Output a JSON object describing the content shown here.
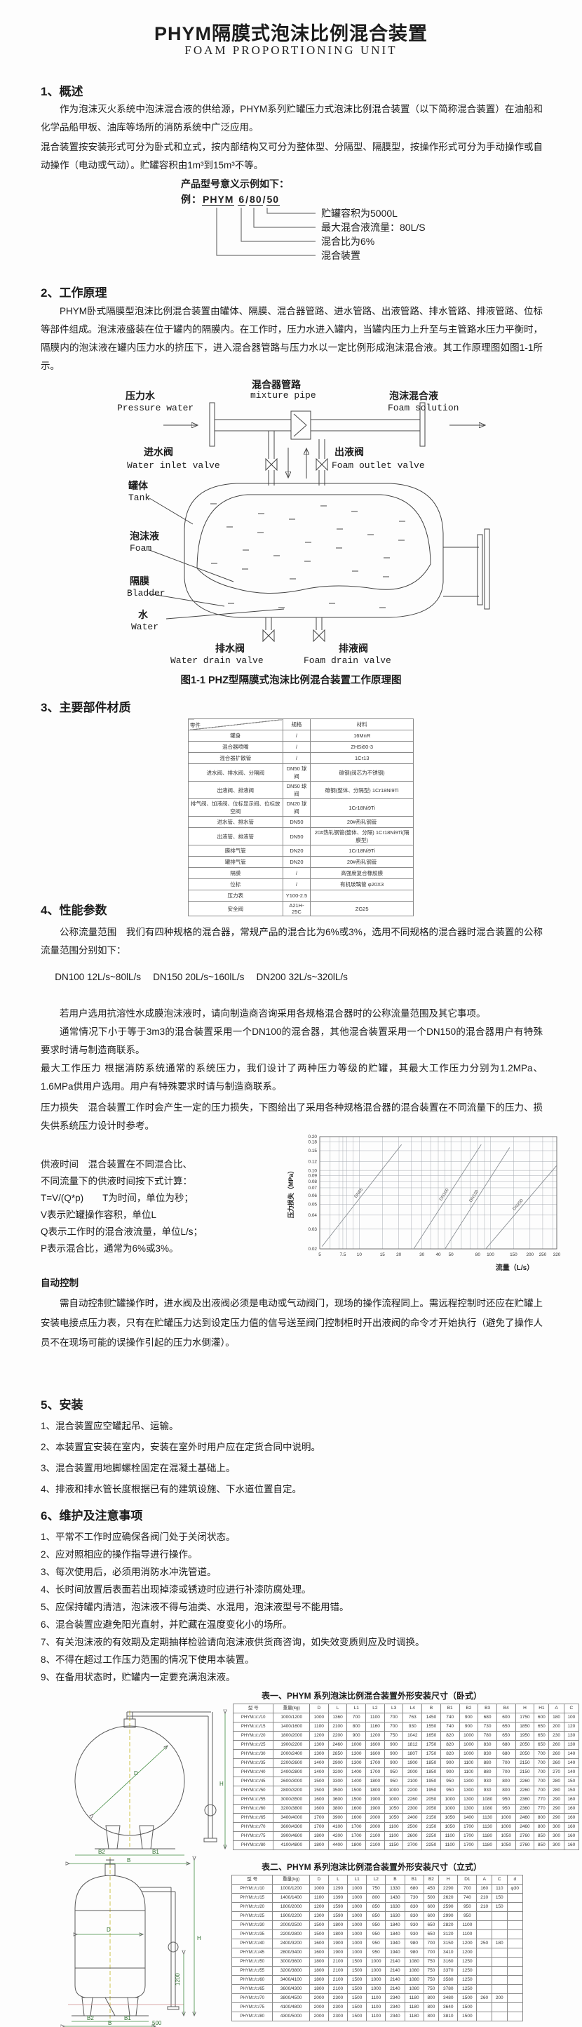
{
  "page": {
    "title": "PHYM隔膜式泡沫比例混合装置",
    "subtitle": "FOAM PROPORTIONING UNIT"
  },
  "s1": {
    "heading": "1、概述",
    "p1": "作为泡沫灭火系统中泡沫混合液的供给源，PHYM系列贮罐压力式泡沫比例混合装置（以下简称混合装置）在油船和化学品船甲板、油库等场所的消防系统中广泛应用。",
    "p2": "混合装置按安装形式可分为卧式和立式，按内部结构又可分为整体型、分隔型、隔膜型，按操作形式可分为手动操作或自动操作（电动或气动）。贮罐容积由1m³到15m³不等。"
  },
  "model": {
    "intro": "产品型号意义示例如下：",
    "example_label": "例：",
    "code_parts": [
      "PHYM",
      "6",
      "80",
      "50"
    ],
    "callouts": [
      "贮罐容积为5000L",
      "最大混合液流量：80L/S",
      "混合比为6%",
      "混合装置"
    ]
  },
  "s2": {
    "heading": "2、工作原理",
    "p1": "PHYM卧式隔膜型泡沫比例混合装置由罐体、隔膜、混合器管路、进水管路、出液管路、排水管路、排液管路、位标等部件组成。泡沫液盛装在位于罐内的隔膜内。在工作时，压力水进入罐内，当罐内压力上升至与主管路水压力平衡时，隔膜内的泡沫液在罐内压力水的挤压下，进入混合器管路与压力水以一定比例形成泡沫混合液。其工作原理图如图1-1所示。"
  },
  "figure": {
    "caption": "图1-1 PHZ型隔膜式泡沫比例混合装置工作原理图",
    "labels": {
      "mixture_pipe": {
        "cn": "混合器管路",
        "en": "mixture pipe"
      },
      "pressure_water": {
        "cn": "压力水",
        "en": "Pressure water"
      },
      "foam_solution": {
        "cn": "泡沫混合液",
        "en": "Foam solution"
      },
      "water_inlet_valve": {
        "cn": "进水阀",
        "en": "Water inlet valve"
      },
      "foam_outlet_valve": {
        "cn": "出液阀",
        "en": "Foam outlet valve"
      },
      "tank": {
        "cn": "罐体",
        "en": "Tank"
      },
      "foam": {
        "cn": "泡沫液",
        "en": "Foam"
      },
      "bladder": {
        "cn": "隔膜",
        "en": "Bladder"
      },
      "water": {
        "cn": "水",
        "en": "Water"
      },
      "water_drain_valve": {
        "cn": "排水阀",
        "en": "Water drain valve"
      },
      "foam_drain_valve": {
        "cn": "排液阀",
        "en": "Foam drain valve"
      }
    }
  },
  "s3": {
    "heading": "3、主要部件材质",
    "materials_table": {
      "headers": [
        "零件",
        "规格",
        "材料"
      ],
      "rows": [
        [
          "罐身",
          "/",
          "16MnR"
        ],
        [
          "混合器喷嘴",
          "/",
          "ZHSi60-3"
        ],
        [
          "混合器扩散管",
          "/",
          "1Cr13"
        ],
        [
          "进水阀、排水阀、分隔阀",
          "DN50 球阀",
          "碳钢(阀芯为不锈钢)"
        ],
        [
          "出液阀、排液阀",
          "DN50 球阀",
          "碳钢(整体、分隔型) 1Cr18Ni9Ti"
        ],
        [
          "排气阀、加液阀、位标显示阀、位标放空阀",
          "DN20 球阀",
          "1Cr18Ni9Ti"
        ],
        [
          "进水管、排水管",
          "DN50",
          "20#热轧钢管"
        ],
        [
          "出液管、排液管",
          "DN50",
          "20#热轧钢管(整体、分隔) 1Cr18Ni9Ti(隔膜型)"
        ],
        [
          "膜排气管",
          "DN20",
          "1Cr18Ni9Ti"
        ],
        [
          "罐排气管",
          "DN20",
          "20#热轧钢管"
        ],
        [
          "隔膜",
          "/",
          "高强度复合橡胶膜"
        ],
        [
          "位标",
          "/",
          "有机玻璃管 φ20X3"
        ],
        [
          "压力表",
          "Y100-2.5",
          ""
        ],
        [
          "安全阀",
          "A21H-25C",
          "ZG25"
        ]
      ]
    }
  },
  "s4": {
    "heading": "4、性能参数",
    "p1": "公称流量范围　我们有四种规格的混合器，常规产品的混合比为6%或3%，选用不同规格的混合器时混合装置的公称流量范围分别如下：",
    "flow_line": "DN100  12L/s~80lL/s　 DN150  20L/s~160lL/s　 DN200  32L/s~320lL/s",
    "p3": "若用户选用抗溶性水成膜泡沫液时，请向制造商咨询采用各规格混合器时的公称流量范围及其它事项。",
    "p4": "通常情况下小于等于3m3的混合装置采用一个DN100的混合器，其他混合装置采用一个DN150的混合器用户有特殊要求时请与制造商联系。",
    "p5": "最大工作压力 根据消防系统通常的系统压力，我们设计了两种压力等级的贮罐，其最大工作压力分别为1.2MPa、1.6MPa供用户选用。用户有特殊要求时请与制造商联系。",
    "p6": "压力损失　混合装置工作时会产生一定的压力损失，下图给出了采用各种规格混合器的混合装置在不同流量下的压力、损失供系统压力设计时参考。",
    "supply_time_lines": [
      "供液时间　混合装置在不同混合比、",
      "不同流量下的供液时间按下式计算：",
      "T=V/(Q*p)　　T为时间，单位为秒；",
      "V表示贮罐操作容积，单位L",
      "Q表示工作时的混合液流量，单位L/s；",
      "P表示混合比，通常为6%或3%。"
    ],
    "auto_heading": "自动控制",
    "auto_paragraph": "需自动控制贮罐操作时，进水阀及出液阀必须是电动或气动阀门，现场的操作流程同上。需远程控制时还应在贮罐上安装电接点压力表，只有在贮罐压力达到设定压力值的信号送至阀门控制柜时开出液阀的命令才开始执行（避免了操作人员不在现场可能的误操作引起的压力水倒灌）。"
  },
  "chart_data": {
    "type": "line",
    "title": "",
    "xlabel": "流量（L/s）",
    "ylabel": "压力损失（MPa）",
    "x_scale": "log",
    "y_scale": "log",
    "xlim": [
      5,
      320
    ],
    "ylim": [
      0.02,
      0.2
    ],
    "x_ticks": [
      5,
      7.5,
      10,
      15,
      20,
      30,
      40,
      50,
      80,
      100,
      150,
      200,
      250,
      320
    ],
    "x_grid": [
      5,
      6,
      7,
      7.5,
      8,
      9,
      10,
      15,
      20,
      25,
      30,
      35,
      40,
      45,
      50,
      60,
      70,
      80,
      90,
      100,
      150,
      200,
      250,
      300,
      320
    ],
    "y_ticks": [
      0.02,
      0.03,
      0.04,
      0.05,
      0.06,
      0.07,
      0.08,
      0.09,
      0.1,
      0.12,
      0.15,
      0.18,
      0.2
    ],
    "grid": true,
    "legend": "inline-labels",
    "series": [
      {
        "name": "DN65",
        "x": [
          5.2,
          21
        ],
        "y": [
          0.021,
          0.17
        ]
      },
      {
        "name": "DN100",
        "x": [
          26,
          85
        ],
        "y": [
          0.02,
          0.17
        ]
      },
      {
        "name": "DN150",
        "x": [
          45,
          140
        ],
        "y": [
          0.02,
          0.16
        ]
      },
      {
        "name": "DN200",
        "x": [
          92,
          318
        ],
        "y": [
          0.02,
          0.11
        ]
      }
    ]
  },
  "s5": {
    "heading": "5、安装",
    "items": [
      "1、混合装置应空罐起吊、运输。",
      "2、本装置宜安装在室内，安装在室外时用户应在定货合同中说明。",
      "3、混合装置用地脚螺栓固定在混凝土基础上。",
      "4、排液和排水管长度根据已有的建筑设施、下水道位置自定。"
    ]
  },
  "s6": {
    "heading": "6、维护及注意事项",
    "items": [
      "1、平常不工作时应确保各阀门处于关闭状态。",
      "2、应对照相应的操作指导进行操作。",
      "3、每次使用后，必须用消防水冲洗管道。",
      "4、长时间放置后表面若出现掉漆或锈迹时应进行补漆防腐处理。",
      "5、应保持罐内清洁，泡沫液不得与油类、水混用，泡沫液型号不能用错。",
      "6、混合装置应避免阳光直射，并贮藏在温度变化小的场所。",
      "7、有关泡沫液的有效期及定期抽样检验请向泡沫液供货商咨询，如失效变质则应及时调换。",
      "8、不得在超过工作压力范围的情况下使用本装置。",
      "9、在备用状态时，贮罐内一定要充满泡沫液。"
    ]
  },
  "table1": {
    "title": "表一、PHYM 系列泡沫比例混合装置外形安装尺寸（卧式）",
    "headers": [
      "型  号",
      "重量(kg)",
      "D",
      "L",
      "L1",
      "L2",
      "L3",
      "L4",
      "B",
      "B1",
      "B2",
      "B3",
      "B4",
      "H",
      "H1",
      "A",
      "C"
    ],
    "rows": [
      [
        "PHYM□/□/10",
        "1000/1200",
        "1000",
        "1360",
        "700",
        "1100",
        "700",
        "763",
        "1450",
        "740",
        "900",
        "680",
        "600",
        "1750",
        "600",
        "180",
        "100"
      ],
      [
        "PHYM□/□/15",
        "1400/1600",
        "1100",
        "2100",
        "800",
        "1160",
        "700",
        "930",
        "1550",
        "740",
        "900",
        "730",
        "650",
        "1850",
        "650",
        "200",
        "120"
      ],
      [
        "PHYM□/□/20",
        "1800/2000",
        "1200",
        "2200",
        "900",
        "1200",
        "750",
        "1042",
        "1650",
        "820",
        "1000",
        "780",
        "650",
        "1950",
        "650",
        "230",
        "130"
      ],
      [
        "PHYM□/□/25",
        "1900/2200",
        "1300",
        "2460",
        "1000",
        "1600",
        "900",
        "1812",
        "1750",
        "820",
        "1000",
        "830",
        "680",
        "2050",
        "650",
        "260",
        "130"
      ],
      [
        "PHYM□/□/30",
        "2000/2400",
        "1300",
        "2850",
        "1300",
        "1600",
        "900",
        "1807",
        "1750",
        "820",
        "1000",
        "830",
        "680",
        "2050",
        "700",
        "260",
        "140"
      ],
      [
        "PHYM□/□/35",
        "2200/2600",
        "1400",
        "2900",
        "1300",
        "1700",
        "900",
        "1900",
        "1850",
        "900",
        "1100",
        "880",
        "700",
        "2150",
        "700",
        "260",
        "140"
      ],
      [
        "PHYM□/□/40",
        "2400/2800",
        "1400",
        "3200",
        "1400",
        "1700",
        "950",
        "2000",
        "1850",
        "900",
        "1100",
        "880",
        "700",
        "2150",
        "700",
        "270",
        "140"
      ],
      [
        "PHYM□/□/45",
        "2600/3000",
        "1500",
        "3300",
        "1400",
        "1800",
        "950",
        "2100",
        "1950",
        "950",
        "1300",
        "930",
        "800",
        "2260",
        "700",
        "280",
        "150"
      ],
      [
        "PHYM□/□/50",
        "2800/3200",
        "1500",
        "3500",
        "1500",
        "1800",
        "1000",
        "2200",
        "1950",
        "950",
        "1300",
        "930",
        "800",
        "2260",
        "700",
        "280",
        "150"
      ],
      [
        "PHYM□/□/55",
        "3000/3500",
        "1600",
        "3600",
        "1500",
        "1900",
        "1000",
        "2260",
        "2050",
        "1000",
        "1300",
        "1080",
        "950",
        "2360",
        "770",
        "290",
        "160"
      ],
      [
        "PHYM□/□/60",
        "3200/3800",
        "1600",
        "3800",
        "1600",
        "1900",
        "1050",
        "2300",
        "2050",
        "1000",
        "1300",
        "1080",
        "950",
        "2360",
        "770",
        "290",
        "160"
      ],
      [
        "PHYM□/□/65",
        "3400/4000",
        "1700",
        "3900",
        "1600",
        "2000",
        "1050",
        "2400",
        "2150",
        "1050",
        "1400",
        "1130",
        "1000",
        "2460",
        "800",
        "290",
        "160"
      ],
      [
        "PHYM□/□/70",
        "3600/4300",
        "1700",
        "4100",
        "1700",
        "2000",
        "1100",
        "2500",
        "2150",
        "1050",
        "1700",
        "1130",
        "1000",
        "2460",
        "800",
        "300",
        "160"
      ],
      [
        "PHYM□/□/75",
        "3900/4600",
        "1800",
        "4200",
        "1700",
        "2100",
        "1100",
        "2600",
        "2250",
        "1100",
        "1700",
        "1180",
        "1050",
        "2760",
        "850",
        "300",
        "160"
      ],
      [
        "PHYM□/□/80",
        "4100/4800",
        "1800",
        "4400",
        "1800",
        "2100",
        "1150",
        "2700",
        "2250",
        "1100",
        "1700",
        "1180",
        "1050",
        "2760",
        "850",
        "300",
        "160"
      ]
    ]
  },
  "table2": {
    "title": "表二、PHYM 系列泡沫比例混合装置外形安装尺寸（立式）",
    "headers": [
      "型  号",
      "重量(kg)",
      "D",
      "L",
      "L1",
      "L2",
      "B",
      "B1",
      "B2",
      "H",
      "D1",
      "A",
      "C",
      "d"
    ],
    "rows": [
      [
        "PHYM□/□/10",
        "1000/1200",
        "1000",
        "1290",
        "1000",
        "750",
        "1330",
        "680",
        "450",
        "2290",
        "700",
        "160",
        "110",
        "φ30"
      ],
      [
        "PHYM□/□/15",
        "1400/1400",
        "1100",
        "1390",
        "1000",
        "800",
        "1430",
        "730",
        "500",
        "2620",
        "740",
        "210",
        "150",
        ""
      ],
      [
        "PHYM□/□/20",
        "1800/2000",
        "1200",
        "1590",
        "1000",
        "850",
        "1630",
        "830",
        "600",
        "2590",
        "950",
        "210",
        "150",
        ""
      ],
      [
        "PHYM□/□/25",
        "1900/2200",
        "1300",
        "1590",
        "1000",
        "850",
        "1630",
        "830",
        "600",
        "2990",
        "950",
        "",
        "",
        ""
      ],
      [
        "PHYM□/□/30",
        "2000/2500",
        "1500",
        "1800",
        "1000",
        "950",
        "1840",
        "930",
        "650",
        "2820",
        "1100",
        "",
        "",
        ""
      ],
      [
        "PHYM□/□/35",
        "2200/2800",
        "1500",
        "1800",
        "1000",
        "950",
        "1840",
        "930",
        "650",
        "3120",
        "1100",
        "",
        "",
        ""
      ],
      [
        "PHYM□/□/40",
        "2400/3200",
        "1600",
        "1900",
        "1000",
        "950",
        "1940",
        "980",
        "700",
        "3150",
        "1200",
        "250",
        "180",
        ""
      ],
      [
        "PHYM□/□/45",
        "2800/3400",
        "1600",
        "1900",
        "1000",
        "950",
        "1940",
        "980",
        "700",
        "3410",
        "1200",
        "",
        "",
        ""
      ],
      [
        "PHYM□/□/50",
        "3000/3600",
        "1800",
        "2100",
        "1500",
        "1000",
        "2140",
        "1080",
        "750",
        "3160",
        "1250",
        "",
        "",
        ""
      ],
      [
        "PHYM□/□/55",
        "3200/3800",
        "1800",
        "2100",
        "1500",
        "1000",
        "2140",
        "1080",
        "750",
        "3370",
        "1250",
        "",
        "",
        ""
      ],
      [
        "PHYM□/□/60",
        "3400/4100",
        "1800",
        "2100",
        "1500",
        "1000",
        "2140",
        "1080",
        "750",
        "3580",
        "1250",
        "",
        "",
        ""
      ],
      [
        "PHYM□/□/65",
        "3600/4300",
        "1800",
        "2100",
        "1500",
        "1000",
        "2140",
        "1080",
        "750",
        "3780",
        "1250",
        "",
        "",
        ""
      ],
      [
        "PHYM□/□/70",
        "3800/4500",
        "2000",
        "2300",
        "1500",
        "1100",
        "2340",
        "1180",
        "800",
        "3480",
        "1500",
        "260",
        "200",
        ""
      ],
      [
        "PHYM□/□/75",
        "4100/4800",
        "2000",
        "2300",
        "1500",
        "1100",
        "2340",
        "1180",
        "800",
        "3640",
        "1500",
        "",
        "",
        ""
      ],
      [
        "PHYM□/□/80",
        "4300/5000",
        "2000",
        "2300",
        "1500",
        "1100",
        "2340",
        "1180",
        "800",
        "3810",
        "1500",
        "",
        "",
        ""
      ]
    ]
  },
  "drawings": {
    "dim1": {
      "d": "D",
      "h": "H",
      "b1": "B1",
      "b2": "B2",
      "b": "B"
    },
    "dim2": {
      "d": "D",
      "h": "H",
      "h2": "1200",
      "s": "500",
      "b2": "B2",
      "b1": "B1",
      "b": "B"
    }
  }
}
